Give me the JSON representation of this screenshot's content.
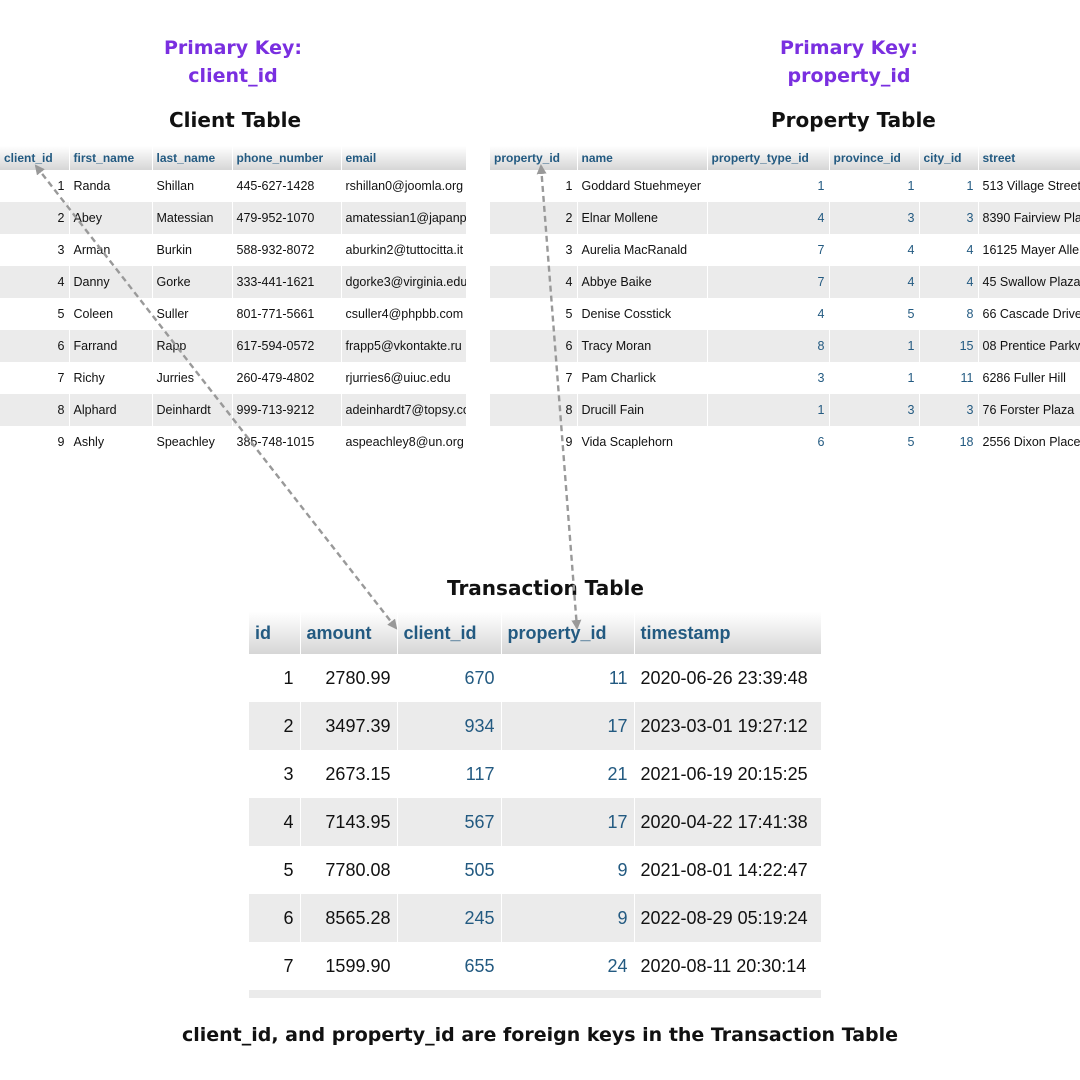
{
  "client_pk": {
    "label": "Primary Key:",
    "key": "client_id"
  },
  "property_pk": {
    "label": "Primary Key:",
    "key": "property_id"
  },
  "client_table": {
    "title": "Client Table",
    "headers": [
      "client_id",
      "first_name",
      "last_name",
      "phone_number",
      "email"
    ],
    "rows": [
      [
        "1",
        "Randa",
        "Shillan",
        "445-627-1428",
        "rshillan0@joomla.org"
      ],
      [
        "2",
        "Abey",
        "Matessian",
        "479-952-1070",
        "amatessian1@japanp"
      ],
      [
        "3",
        "Arman",
        "Burkin",
        "588-932-8072",
        "aburkin2@tuttocitta.it"
      ],
      [
        "4",
        "Danny",
        "Gorke",
        "333-441-1621",
        "dgorke3@virginia.edu"
      ],
      [
        "5",
        "Coleen",
        "Suller",
        "801-771-5661",
        "csuller4@phpbb.com"
      ],
      [
        "6",
        "Farrand",
        "Rapp",
        "617-594-0572",
        "frapp5@vkontakte.ru"
      ],
      [
        "7",
        "Richy",
        "Jurries",
        "260-479-4802",
        "rjurries6@uiuc.edu"
      ],
      [
        "8",
        "Alphard",
        "Deinhardt",
        "999-713-9212",
        "adeinhardt7@topsy.co"
      ],
      [
        "9",
        "Ashly",
        "Speachley",
        "385-748-1015",
        "aspeachley8@un.org"
      ]
    ]
  },
  "property_table": {
    "title": "Property Table",
    "headers": [
      "property_id",
      "name",
      "property_type_id",
      "province_id",
      "city_id",
      "street"
    ],
    "rows": [
      [
        "1",
        "Goddard Stuehmeyer",
        "1",
        "1",
        "1",
        "513 Village Street"
      ],
      [
        "2",
        "Elnar Mollene",
        "4",
        "3",
        "3",
        "8390 Fairview Pla"
      ],
      [
        "3",
        "Aurelia MacRanald",
        "7",
        "4",
        "4",
        "16125 Mayer Alle"
      ],
      [
        "4",
        "Abbye Baike",
        "7",
        "4",
        "4",
        "45 Swallow Plaza"
      ],
      [
        "5",
        "Denise Cosstick",
        "4",
        "5",
        "8",
        "66 Cascade Drive"
      ],
      [
        "6",
        "Tracy Moran",
        "8",
        "1",
        "15",
        "08 Prentice Parkw"
      ],
      [
        "7",
        "Pam Charlick",
        "3",
        "1",
        "11",
        "6286 Fuller Hill"
      ],
      [
        "8",
        "Drucill Fain",
        "1",
        "3",
        "3",
        "76 Forster Plaza"
      ],
      [
        "9",
        "Vida Scaplehorn",
        "6",
        "5",
        "18",
        "2556 Dixon Place"
      ]
    ]
  },
  "transaction_table": {
    "title": "Transaction Table",
    "headers": [
      "id",
      "amount",
      "client_id",
      "property_id",
      "timestamp"
    ],
    "rows": [
      [
        "1",
        "2780.99",
        "670",
        "11",
        "2020-06-26 23:39:48"
      ],
      [
        "2",
        "3497.39",
        "934",
        "17",
        "2023-03-01 19:27:12"
      ],
      [
        "3",
        "2673.15",
        "117",
        "21",
        "2021-06-19 20:15:25"
      ],
      [
        "4",
        "7143.95",
        "567",
        "17",
        "2020-04-22 17:41:38"
      ],
      [
        "5",
        "7780.08",
        "505",
        "9",
        "2021-08-01 14:22:47"
      ],
      [
        "6",
        "8565.28",
        "245",
        "9",
        "2022-08-29 05:19:24"
      ],
      [
        "7",
        "1599.90",
        "655",
        "24",
        "2020-08-11 20:30:14"
      ]
    ]
  },
  "footer": "client_id, and property_id are foreign keys in the Transaction Table",
  "colors": {
    "primary_key": "#7a2fe0",
    "header_text": "#235a81",
    "arrow": "#999999"
  }
}
